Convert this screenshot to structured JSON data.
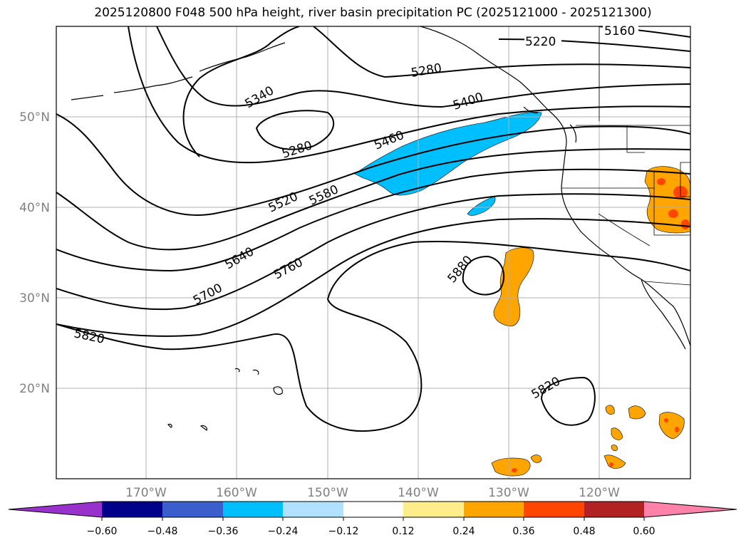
{
  "title": "2025120800 F048 500 hPa height, river basin precipitation PC (2025121000 - 2025121300)",
  "axes": {
    "lat_labels": [
      "50°N",
      "40°N",
      "30°N",
      "20°N"
    ],
    "lon_labels": [
      "170°W",
      "160°W",
      "150°W",
      "140°W",
      "130°W",
      "120°W"
    ]
  },
  "contour_labels": [
    "5160",
    "5220",
    "5280",
    "5340",
    "5400",
    "5280",
    "5460",
    "5520",
    "5580",
    "5640",
    "5700",
    "5760",
    "5880",
    "5820",
    "5820"
  ],
  "colorbar": {
    "ticks": [
      "−0.60",
      "−0.48",
      "−0.36",
      "−0.24",
      "−0.12",
      "0.12",
      "0.24",
      "0.36",
      "0.48",
      "0.60"
    ],
    "colors": [
      "#9932cc",
      "#00008b",
      "#3a5fcd",
      "#00bfff",
      "#b0e2ff",
      "#ffffff",
      "#ffec8b",
      "#ffa500",
      "#ff4500",
      "#b22222",
      "#ff82ab"
    ]
  },
  "colors": {
    "negative_fill": "#00bfff",
    "positive_fill": "#ffa500",
    "strong_positive_fill": "#ff4500",
    "grid": "#b0b0b0",
    "contour": "#000000"
  }
}
